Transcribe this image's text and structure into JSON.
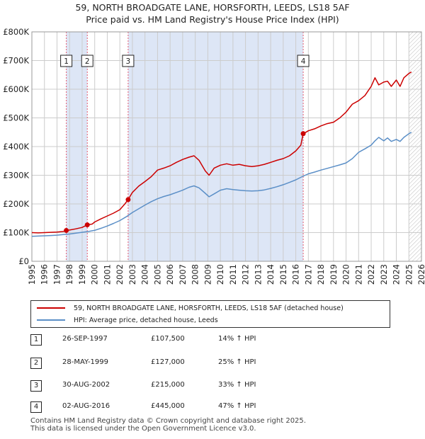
{
  "header": {
    "title_line1": "59, NORTH BROADGATE LANE, HORSFORTH, LEEDS, LS18 5AF",
    "title_line2": "Price paid vs. HM Land Registry's House Price Index (HPI)"
  },
  "colors": {
    "price_line": "#cc0000",
    "hpi_line": "#5b8fc7",
    "shade": "#dde6f6",
    "marker_line": "#e35a70",
    "grid": "#cccccc"
  },
  "legend": {
    "items": [
      {
        "label": "59, NORTH BROADGATE LANE, HORSFORTH, LEEDS, LS18 5AF (detached house)",
        "color": "#cc0000"
      },
      {
        "label": "HPI: Average price, detached house, Leeds",
        "color": "#5b8fc7"
      }
    ]
  },
  "sales_table": [
    {
      "num": "1",
      "date": "26-SEP-1997",
      "price": "£107,500",
      "hpi": "14% ↑ HPI"
    },
    {
      "num": "2",
      "date": "28-MAY-1999",
      "price": "£127,000",
      "hpi": "25% ↑ HPI"
    },
    {
      "num": "3",
      "date": "30-AUG-2002",
      "price": "£215,000",
      "hpi": "33% ↑ HPI"
    },
    {
      "num": "4",
      "date": "02-AUG-2016",
      "price": "£445,000",
      "hpi": "47% ↑ HPI"
    }
  ],
  "footer": {
    "line1": "Contains HM Land Registry data © Crown copyright and database right 2025.",
    "line2": "This data is licensed under the Open Government Licence v3.0."
  },
  "chart_data": {
    "type": "line",
    "title": "59, NORTH BROADGATE LANE, HORSFORTH, LEEDS, LS18 5AF",
    "subtitle": "Price paid vs. HM Land Registry's House Price Index (HPI)",
    "xlabel": "",
    "ylabel": "",
    "xlim": [
      1995,
      2026
    ],
    "ylim": [
      0,
      800000
    ],
    "x_ticks": [
      "1995",
      "1996",
      "1997",
      "1998",
      "1999",
      "2000",
      "2001",
      "2002",
      "2003",
      "2004",
      "2005",
      "2006",
      "2007",
      "2008",
      "2009",
      "2010",
      "2011",
      "2012",
      "2013",
      "2014",
      "2015",
      "2016",
      "2017",
      "2018",
      "2019",
      "2020",
      "2021",
      "2022",
      "2023",
      "2024",
      "2025",
      "2026"
    ],
    "y_ticks": [
      {
        "value": 0,
        "label": "£0"
      },
      {
        "value": 100000,
        "label": "£100K"
      },
      {
        "value": 200000,
        "label": "£200K"
      },
      {
        "value": 300000,
        "label": "£300K"
      },
      {
        "value": 400000,
        "label": "£400K"
      },
      {
        "value": 500000,
        "label": "£500K"
      },
      {
        "value": 600000,
        "label": "£600K"
      },
      {
        "value": 700000,
        "label": "£700K"
      },
      {
        "value": 800000,
        "label": "£800K"
      }
    ],
    "grid": true,
    "legend_position": "below",
    "shaded_ranges": [
      [
        1997.74,
        1999.41
      ],
      [
        2002.66,
        2016.59
      ]
    ],
    "hatched_from": 2025.0,
    "series": [
      {
        "name": "59, NORTH BROADGATE LANE, HORSFORTH, LEEDS, LS18 5AF (detached house)",
        "color": "#cc0000",
        "x": [
          1995,
          1995.5,
          1996,
          1996.5,
          1997,
          1997.5,
          1997.74,
          1998,
          1998.5,
          1999,
          1999.41,
          1999.8,
          2000,
          2000.5,
          2001,
          2001.5,
          2002,
          2002.4,
          2002.66,
          2003,
          2003.5,
          2004,
          2004.5,
          2005,
          2005.5,
          2006,
          2006.5,
          2007,
          2007.5,
          2007.9,
          2008.3,
          2008.8,
          2009.1,
          2009.5,
          2010,
          2010.5,
          2011,
          2011.5,
          2012,
          2012.5,
          2013,
          2013.5,
          2014,
          2014.5,
          2015,
          2015.5,
          2016,
          2016.4,
          2016.59,
          2016.8,
          2017,
          2017.5,
          2018,
          2018.5,
          2019,
          2019.5,
          2020,
          2020.5,
          2021,
          2021.5,
          2022,
          2022.3,
          2022.6,
          2023,
          2023.3,
          2023.6,
          2024,
          2024.3,
          2024.6,
          2025,
          2025.2
        ],
        "y": [
          100000,
          99000,
          100000,
          101000,
          102000,
          104000,
          107500,
          109000,
          113000,
          118000,
          127000,
          130000,
          137000,
          148000,
          158000,
          168000,
          180000,
          200000,
          215000,
          240000,
          262000,
          278000,
          295000,
          318000,
          325000,
          333000,
          345000,
          355000,
          363000,
          368000,
          352000,
          315000,
          300000,
          325000,
          335000,
          340000,
          335000,
          338000,
          333000,
          330000,
          333000,
          338000,
          345000,
          352000,
          358000,
          368000,
          385000,
          405000,
          445000,
          450000,
          455000,
          462000,
          472000,
          480000,
          485000,
          500000,
          520000,
          548000,
          560000,
          578000,
          610000,
          640000,
          615000,
          625000,
          628000,
          610000,
          632000,
          610000,
          640000,
          655000,
          660000
        ]
      },
      {
        "name": "HPI: Average price, detached house, Leeds",
        "color": "#5b8fc7",
        "x": [
          1995,
          1995.5,
          1996,
          1996.5,
          1997,
          1997.5,
          1998,
          1998.5,
          1999,
          1999.5,
          2000,
          2000.5,
          2001,
          2001.5,
          2002,
          2002.5,
          2003,
          2003.5,
          2004,
          2004.5,
          2005,
          2005.5,
          2006,
          2006.5,
          2007,
          2007.5,
          2007.9,
          2008.3,
          2008.8,
          2009.1,
          2009.5,
          2010,
          2010.5,
          2011,
          2011.5,
          2012,
          2012.5,
          2013,
          2013.5,
          2014,
          2014.5,
          2015,
          2015.5,
          2016,
          2016.5,
          2017,
          2017.5,
          2018,
          2018.5,
          2019,
          2019.5,
          2020,
          2020.5,
          2021,
          2021.5,
          2022,
          2022.3,
          2022.6,
          2023,
          2023.3,
          2023.6,
          2024,
          2024.3,
          2024.6,
          2025,
          2025.2
        ],
        "y": [
          87000,
          88000,
          89000,
          90000,
          91000,
          93000,
          95000,
          98000,
          101000,
          104000,
          108000,
          115000,
          123000,
          132000,
          142000,
          155000,
          170000,
          183000,
          196000,
          208000,
          218000,
          226000,
          232000,
          240000,
          248000,
          258000,
          263000,
          256000,
          237000,
          225000,
          235000,
          248000,
          253000,
          250000,
          248000,
          246000,
          245000,
          246000,
          249000,
          254000,
          260000,
          267000,
          275000,
          284000,
          295000,
          305000,
          311000,
          318000,
          324000,
          330000,
          336000,
          343000,
          358000,
          380000,
          392000,
          405000,
          420000,
          432000,
          420000,
          430000,
          418000,
          425000,
          418000,
          432000,
          445000,
          450000
        ]
      }
    ],
    "sales": [
      {
        "num": "1",
        "x": 1997.74,
        "y": 107500
      },
      {
        "num": "2",
        "x": 1999.41,
        "y": 127000
      },
      {
        "num": "3",
        "x": 2002.66,
        "y": 215000
      },
      {
        "num": "4",
        "x": 2016.59,
        "y": 445000
      }
    ]
  }
}
